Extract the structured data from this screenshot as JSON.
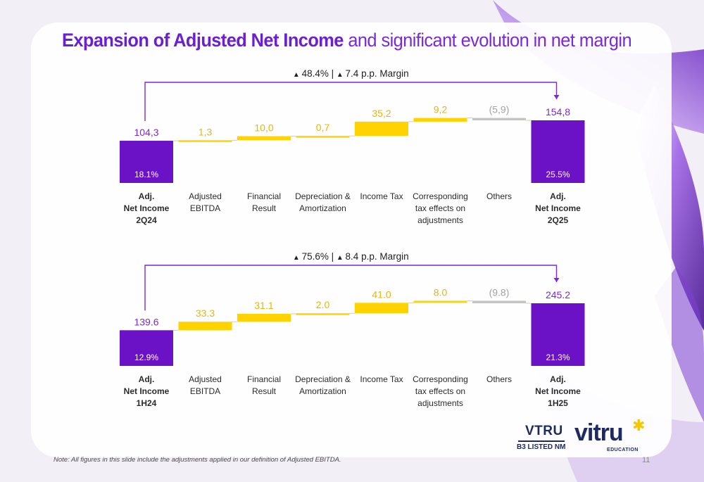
{
  "title": {
    "bold": "Expansion of Adjusted Net Income",
    "rest": " and significant evolution in net margin"
  },
  "colors": {
    "purple": "#6b12c7",
    "purple_text": "#7a2ad6",
    "yellow": "#ffd200",
    "yellow_text": "#e5b800",
    "gray": "#c4c4c4",
    "gray_text": "#a3a3a3"
  },
  "chart_data": [
    {
      "type": "bar",
      "subtype": "waterfall",
      "growth_note": "48.4% | ",
      "margin_note": "7.4 p.p. Margin",
      "categories": [
        "Adj.\nNet Income\n2Q24",
        "Adjusted\nEBITDA",
        "Financial\nResult",
        "Depreciation &\nAmortization",
        "Income Tax",
        "Corresponding\ntax effects on\nadjustments",
        "Others",
        "Adj.\nNet Income\n2Q25"
      ],
      "values": [
        104.3,
        1.3,
        10.0,
        0.7,
        35.2,
        9.2,
        -5.9,
        154.8
      ],
      "value_labels": [
        "104,3",
        "1,3",
        "10,0",
        "0,7",
        "35,2",
        "9,2",
        "(5,9)",
        "154,8"
      ],
      "kinds": [
        "total",
        "increase",
        "increase",
        "increase",
        "increase",
        "increase",
        "decrease",
        "total"
      ],
      "margins": [
        "18.1%",
        "25.5%"
      ],
      "bold_categories": [
        0,
        7
      ]
    },
    {
      "type": "bar",
      "subtype": "waterfall",
      "growth_note": "75.6% | ",
      "margin_note": "8.4 p.p. Margin",
      "categories": [
        "Adj.\nNet Income\n1H24",
        "Adjusted\nEBITDA",
        "Financial\nResult",
        "Depreciation &\nAmortization",
        "Income Tax",
        "Corresponding\ntax effects on\nadjustments",
        "Others",
        "Adj.\nNet Income\n1H25"
      ],
      "values": [
        139.6,
        33.3,
        31.1,
        2.0,
        41.0,
        8.0,
        -9.8,
        245.2
      ],
      "value_labels": [
        "139.6",
        "33.3",
        "31.1",
        "2.0",
        "41.0",
        "8.0",
        "(9.8)",
        "245.2"
      ],
      "kinds": [
        "total",
        "increase",
        "increase",
        "increase",
        "increase",
        "increase",
        "decrease",
        "total"
      ],
      "margins": [
        "12.9%",
        "21.3%"
      ],
      "bold_categories": [
        0,
        7
      ]
    }
  ],
  "logos": {
    "b3_name": "VTRU",
    "b3_sub": "B3 LISTED NM",
    "brand_name": "vitru",
    "brand_sub": "EDUCATION"
  },
  "footnote": "Note: All figures in this slide include the adjustments applied in our definition of Adjusted EBITDA.",
  "page_number": "11"
}
